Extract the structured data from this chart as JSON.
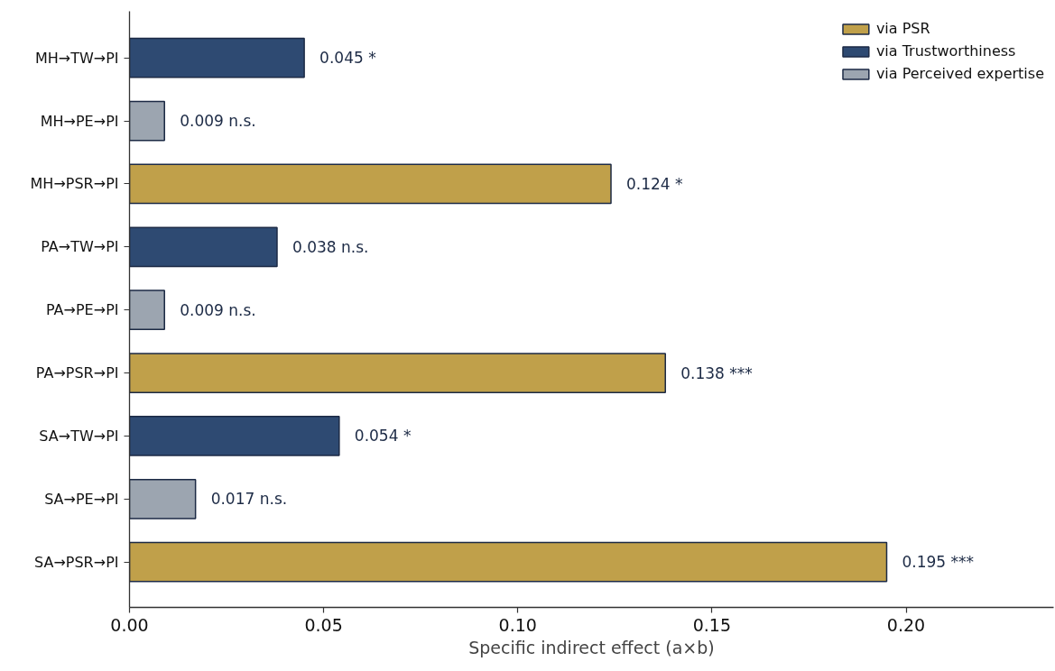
{
  "chart_data": {
    "type": "bar",
    "orientation": "horizontal",
    "xlabel": "Specific indirect effect (a×b)",
    "categories": [
      "MH→TW→PI",
      "MH→PE→PI",
      "MH→PSR→PI",
      "PA→TW→PI",
      "PA→PE→PI",
      "PA→PSR→PI",
      "SA→TW→PI",
      "SA→PE→PI",
      "SA→PSR→PI"
    ],
    "series": [
      {
        "name": "via PSR",
        "color": "#c0a04a",
        "values": [
          null,
          null,
          0.124,
          null,
          null,
          0.138,
          null,
          null,
          0.195
        ],
        "value_labels": [
          null,
          null,
          "0.124 *",
          null,
          null,
          "0.138 ***",
          null,
          null,
          "0.195 ***"
        ]
      },
      {
        "name": "via Trustworthiness",
        "color": "#2e4a72",
        "values": [
          0.045,
          null,
          null,
          0.038,
          null,
          null,
          0.054,
          null,
          null
        ],
        "value_labels": [
          "0.045 *",
          null,
          null,
          "0.038 n.s.",
          null,
          null,
          "0.054 *",
          null,
          null
        ]
      },
      {
        "name": "via Perceived expertise",
        "color": "#9ca5b0",
        "values": [
          null,
          0.009,
          null,
          null,
          0.009,
          null,
          null,
          0.017,
          null
        ],
        "value_labels": [
          null,
          "0.009 n.s.",
          null,
          null,
          "0.009 n.s.",
          null,
          null,
          "0.017 n.s.",
          null
        ]
      }
    ],
    "xlim": [
      0,
      0.238
    ],
    "xticks": [
      {
        "value": 0,
        "label": "0.00"
      },
      {
        "value": 0.05,
        "label": "0.05"
      },
      {
        "value": 0.1,
        "label": "0.10"
      },
      {
        "value": 0.15,
        "label": "0.15"
      },
      {
        "value": 0.2,
        "label": "0.20"
      }
    ],
    "legend": "top right"
  }
}
